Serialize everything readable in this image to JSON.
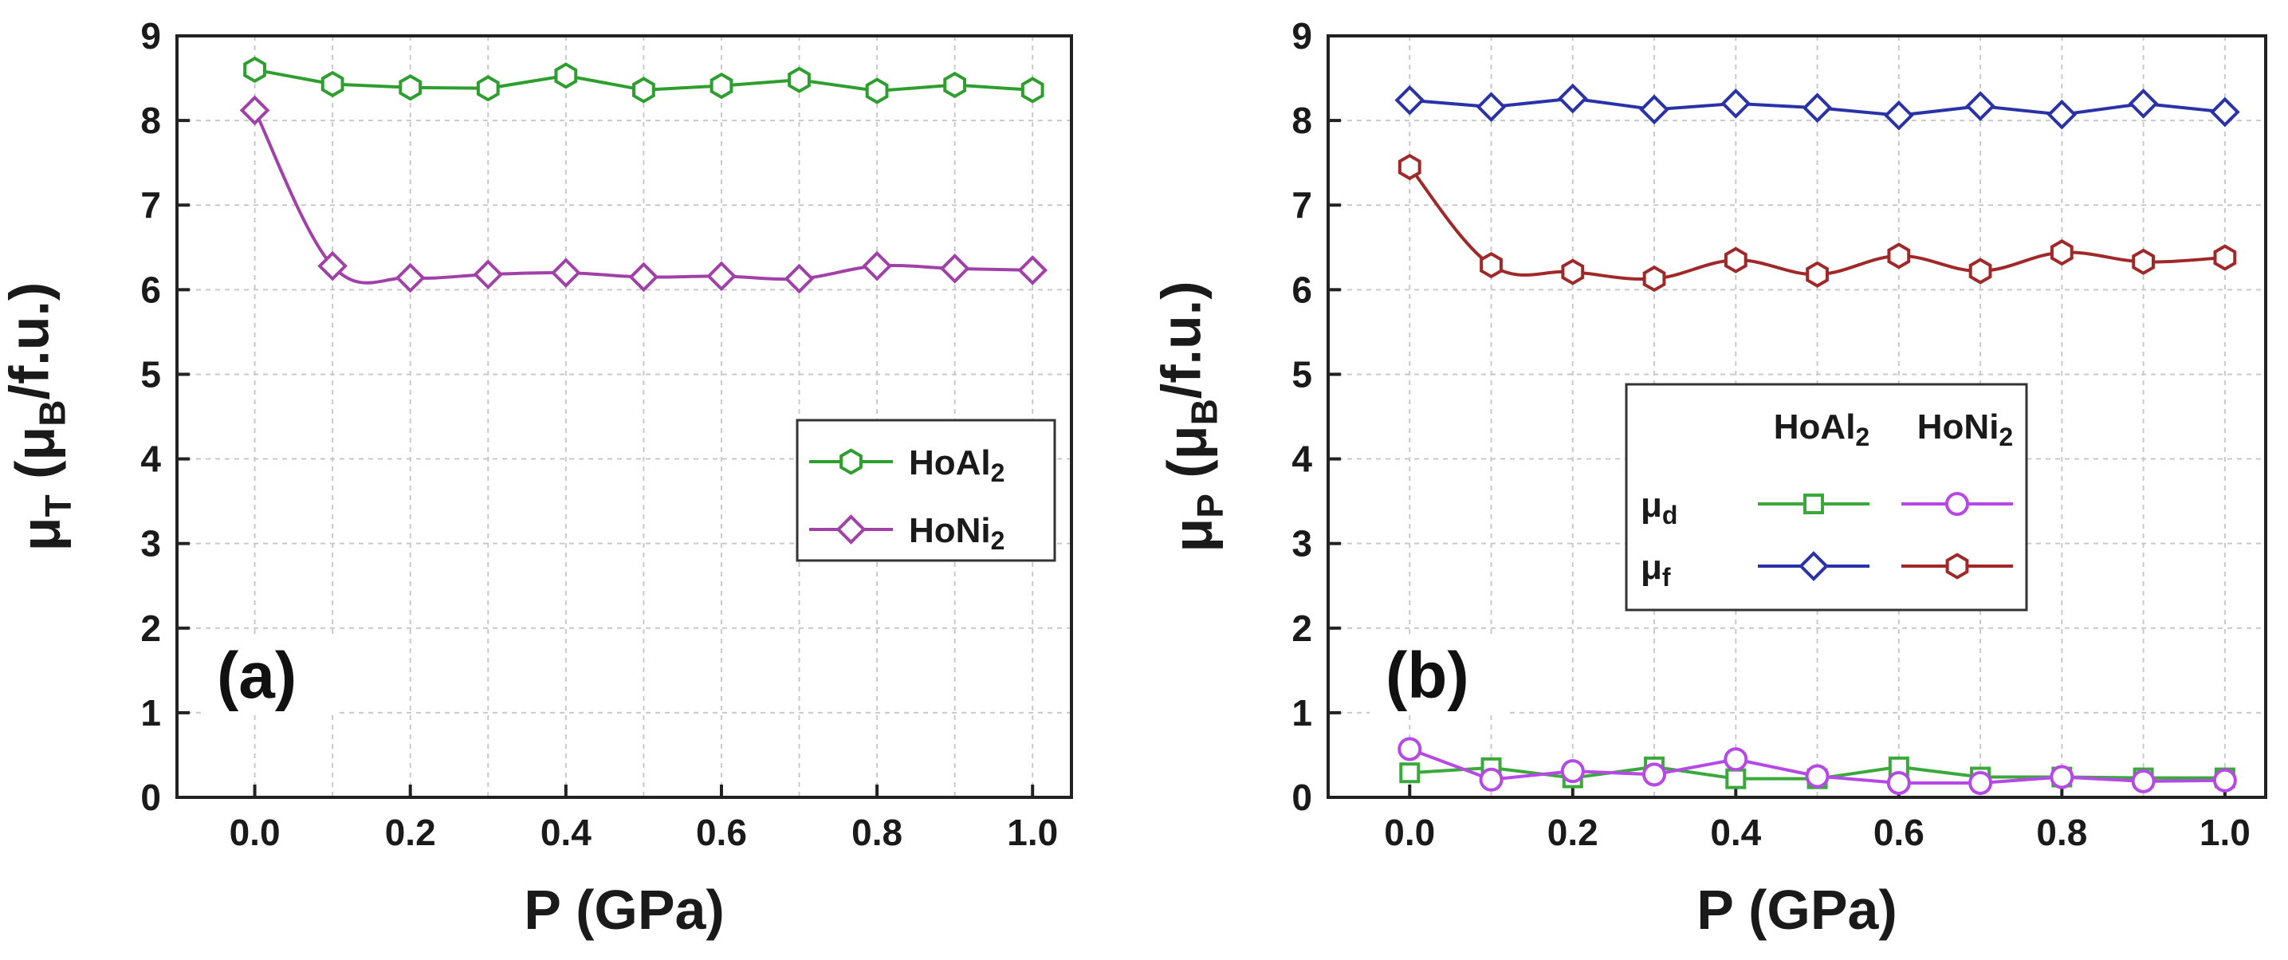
{
  "chart_data": [
    {
      "type": "line",
      "panel_label": "(a)",
      "xlabel": "P (GPa)",
      "ylabel": {
        "base": "μ",
        "sub": "T",
        "unit_prefix": " (μ",
        "unit_sub": "B",
        "unit_suffix": "/f.u.)"
      },
      "xlim": [
        -0.1,
        1.05
      ],
      "ylim": [
        0,
        9
      ],
      "xticks": [
        "0.0",
        "0.2",
        "0.4",
        "0.6",
        "0.8",
        "1.0"
      ],
      "yticks": [
        "0",
        "1",
        "2",
        "3",
        "4",
        "5",
        "6",
        "7",
        "8",
        "9"
      ],
      "grid": true,
      "legend_position": "center-right",
      "x": [
        0.0,
        0.1,
        0.2,
        0.3,
        0.4,
        0.5,
        0.6,
        0.7,
        0.8,
        0.9,
        1.0
      ],
      "series": [
        {
          "name": "HoAl",
          "name_sub": "2",
          "color": "#2e9e2e",
          "marker": "hexagon",
          "values": [
            8.6,
            8.43,
            8.39,
            8.38,
            8.53,
            8.36,
            8.41,
            8.48,
            8.35,
            8.42,
            8.36
          ]
        },
        {
          "name": "HoNi",
          "name_sub": "2",
          "color": "#a040a8",
          "marker": "diamond",
          "values": [
            8.12,
            6.28,
            6.14,
            6.18,
            6.2,
            6.15,
            6.16,
            6.13,
            6.28,
            6.25,
            6.23
          ]
        }
      ]
    },
    {
      "type": "line",
      "panel_label": "(b)",
      "xlabel": "P (GPa)",
      "ylabel": {
        "base": "μ",
        "sub": "P",
        "unit_prefix": " (μ",
        "unit_sub": "B",
        "unit_suffix": "/f.u.)"
      },
      "xlim": [
        -0.1,
        1.05
      ],
      "ylim": [
        0,
        9
      ],
      "xticks": [
        "0.0",
        "0.2",
        "0.4",
        "0.6",
        "0.8",
        "1.0"
      ],
      "yticks": [
        "0",
        "1",
        "2",
        "3",
        "4",
        "5",
        "6",
        "7",
        "8",
        "9"
      ],
      "grid": true,
      "legend_position": "center-right",
      "legend_columns": [
        {
          "name": "HoAl",
          "sub": "2"
        },
        {
          "name": "HoNi",
          "sub": "2"
        }
      ],
      "legend_rows": [
        {
          "name": "μ",
          "sub": "d"
        },
        {
          "name": "μ",
          "sub": "f"
        }
      ],
      "x": [
        0.0,
        0.1,
        0.2,
        0.3,
        0.4,
        0.5,
        0.6,
        0.7,
        0.8,
        0.9,
        1.0
      ],
      "series": [
        {
          "row": 0,
          "col": 0,
          "color": "#3aa83a",
          "marker": "square",
          "values": [
            0.29,
            0.35,
            0.23,
            0.36,
            0.22,
            0.22,
            0.36,
            0.24,
            0.24,
            0.23,
            0.23
          ]
        },
        {
          "row": 0,
          "col": 1,
          "color": "#b548e6",
          "marker": "circle",
          "values": [
            0.57,
            0.21,
            0.31,
            0.27,
            0.45,
            0.25,
            0.17,
            0.17,
            0.24,
            0.19,
            0.2
          ]
        },
        {
          "row": 1,
          "col": 0,
          "color": "#2a32a8",
          "marker": "diamond",
          "values": [
            8.24,
            8.16,
            8.26,
            8.13,
            8.2,
            8.15,
            8.06,
            8.17,
            8.07,
            8.2,
            8.1
          ]
        },
        {
          "row": 1,
          "col": 1,
          "color": "#a02828",
          "marker": "hexagon",
          "values": [
            7.45,
            6.29,
            6.21,
            6.13,
            6.35,
            6.18,
            6.4,
            6.22,
            6.44,
            6.33,
            6.38
          ]
        }
      ]
    }
  ]
}
